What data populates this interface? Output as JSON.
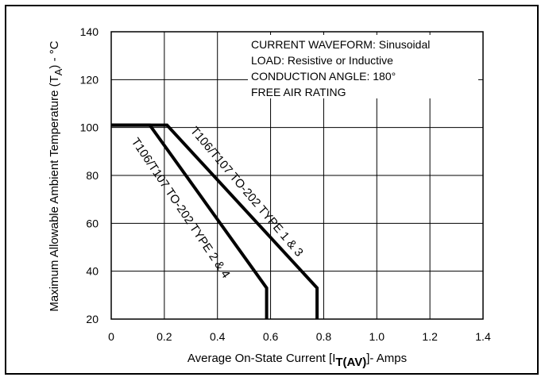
{
  "chart_data": {
    "type": "line",
    "xlabel_main": "Average On-State Current [I",
    "xlabel_sub": "T(AV)",
    "xlabel_tail": "]- Amps",
    "ylabel_main": "Maximum Allowable Ambient Temperature (T",
    "ylabel_sub": "A",
    "ylabel_tail": ") - °C",
    "xlim": [
      0,
      1.4
    ],
    "ylim": [
      20,
      140
    ],
    "x_ticks": [
      "0",
      "0.2",
      "0.4",
      "0.6",
      "0.8",
      "1.0",
      "1.2",
      "1.4"
    ],
    "x_tick_values": [
      0,
      0.2,
      0.4,
      0.6,
      0.8,
      1.0,
      1.2,
      1.4
    ],
    "y_ticks": [
      "20",
      "40",
      "60",
      "80",
      "100",
      "120",
      "140"
    ],
    "y_tick_values": [
      20,
      40,
      60,
      80,
      100,
      120,
      140
    ],
    "grid": true,
    "annotation_lines": [
      "CURRENT WAVEFORM: Sinusoidal",
      "LOAD: Resistive or Inductive",
      "CONDUCTION ANGLE: 180°",
      "FREE AIR RATING"
    ],
    "series": [
      {
        "name": "T106/T107 TO-202 TYPE 1 & 3",
        "x": [
          0,
          0.21,
          0.775,
          0.775
        ],
        "y": [
          101,
          101,
          33,
          20
        ]
      },
      {
        "name": "T106/T107 TO-202 TYPE 2 & 4",
        "x": [
          0,
          0.145,
          0.585,
          0.585
        ],
        "y": [
          101,
          101,
          33,
          20
        ]
      }
    ]
  }
}
